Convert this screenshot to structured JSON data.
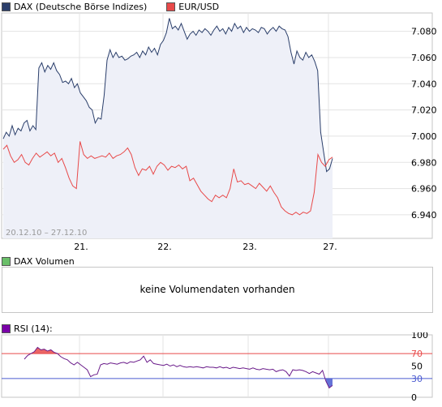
{
  "legend": {
    "dax_label": "DAX (Deutsche Börse Indizes)",
    "dax_color": "#2b3f6b",
    "eur_label": "EUR/USD",
    "eur_color": "#e84a4a"
  },
  "price_panel": {
    "date_range": "20.12.10 – 27.12.10",
    "fill_color": "#eef0f8"
  },
  "volume_panel": {
    "label": "DAX Volumen",
    "swatch_color": "#6abf69",
    "no_data_text": "keine Volumendaten vorhanden"
  },
  "rsi_panel": {
    "label": "RSI (14):",
    "swatch_color": "#7a00a8",
    "line_color": "#6a1b8a",
    "upper_level": 70,
    "lower_level": 30,
    "upper_color": "#e84a4a",
    "lower_color": "#4a5ad0"
  },
  "chart_data": [
    {
      "type": "line",
      "x_tick_labels": [
        "21.",
        "22.",
        "23.",
        "27."
      ],
      "y_tick_labels": [
        "7.080",
        "7.060",
        "7.040",
        "7.020",
        "7.000",
        "6.980",
        "6.960",
        "6.940"
      ],
      "ylim": [
        6.922,
        7.094
      ],
      "grid": true,
      "legend_position": "top-left",
      "series": [
        {
          "name": "DAX (Deutsche Börse Indizes)",
          "values": [
            6998,
            7003,
            7000,
            7008,
            7001,
            7006,
            7004,
            7010,
            7012,
            7004,
            7008,
            7005,
            7052,
            7056,
            7049,
            7054,
            7051,
            7056,
            7050,
            7047,
            7041,
            7042,
            7040,
            7044,
            7037,
            7040,
            7033,
            7030,
            7027,
            7022,
            7020,
            7010,
            7014,
            7013,
            7031,
            7058,
            7066,
            7060,
            7064,
            7060,
            7061,
            7058,
            7059,
            7061,
            7062,
            7064,
            7060,
            7065,
            7062,
            7068,
            7064,
            7067,
            7062,
            7070,
            7073,
            7079,
            7090,
            7082,
            7084,
            7081,
            7086,
            7080,
            7074,
            7078,
            7080,
            7077,
            7081,
            7079,
            7082,
            7080,
            7077,
            7081,
            7084,
            7080,
            7082,
            7078,
            7083,
            7080,
            7086,
            7082,
            7084,
            7079,
            7083,
            7080,
            7082,
            7081,
            7079,
            7083,
            7082,
            7078,
            7081,
            7083,
            7080,
            7084,
            7082,
            7081,
            7076,
            7064,
            7055,
            7065,
            7060,
            7058,
            7064,
            7060,
            7062,
            7057,
            7050,
            7003,
            6988,
            6973,
            6975,
            6983
          ]
        },
        {
          "name": "EUR/USD",
          "values": [
            6990,
            6993,
            6985,
            6980,
            6982,
            6986,
            6980,
            6978,
            6983,
            6987,
            6984,
            6986,
            6988,
            6985,
            6987,
            6980,
            6983,
            6976,
            6968,
            6962,
            6960,
            6996,
            6986,
            6983,
            6985,
            6983,
            6984,
            6985,
            6984,
            6987,
            6983,
            6985,
            6986,
            6988,
            6991,
            6986,
            6976,
            6970,
            6975,
            6974,
            6977,
            6971,
            6977,
            6980,
            6978,
            6974,
            6977,
            6976,
            6978,
            6975,
            6977,
            6966,
            6968,
            6963,
            6958,
            6955,
            6952,
            6950,
            6955,
            6953,
            6955,
            6953,
            6960,
            6975,
            6965,
            6966,
            6963,
            6964,
            6962,
            6960,
            6964,
            6961,
            6958,
            6962,
            6957,
            6953,
            6946,
            6943,
            6941,
            6940,
            6942,
            6940,
            6942,
            6941,
            6943,
            6957,
            6986,
            6980,
            6977,
            6982,
            6984
          ]
        }
      ]
    },
    {
      "type": "line",
      "title": "RSI (14):",
      "y_tick_labels": [
        "100",
        "70",
        "50",
        "30",
        "0"
      ],
      "ylim": [
        0,
        100
      ],
      "levels": [
        70,
        30
      ],
      "x_tick_labels": [
        "21.",
        "22.",
        "23.",
        "27."
      ],
      "values": [
        61,
        67,
        70,
        73,
        80,
        76,
        77,
        74,
        76,
        72,
        70,
        65,
        62,
        60,
        55,
        52,
        56,
        52,
        48,
        44,
        33,
        36,
        37,
        52,
        54,
        53,
        55,
        54,
        53,
        55,
        56,
        54,
        57,
        56,
        58,
        60,
        66,
        56,
        60,
        54,
        53,
        52,
        51,
        53,
        50,
        52,
        49,
        51,
        49,
        48,
        49,
        48,
        49,
        48,
        47,
        49,
        48,
        48,
        47,
        49,
        47,
        48,
        46,
        48,
        47,
        46,
        47,
        46,
        45,
        47,
        45,
        44,
        46,
        45,
        44,
        45,
        41,
        43,
        44,
        41,
        34,
        44,
        43,
        44,
        43,
        41,
        38,
        41,
        39,
        37,
        43,
        26,
        15,
        19
      ]
    }
  ]
}
